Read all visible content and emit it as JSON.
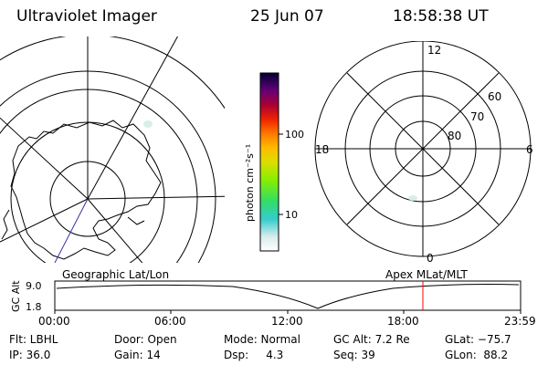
{
  "header": {
    "instrument": "Ultraviolet Imager",
    "date": "25 Jun 07",
    "time": "18:58:38 UT"
  },
  "colorbar": {
    "unit_label": "photon cm⁻²s⁻¹",
    "ticks": [
      "100",
      "10"
    ]
  },
  "polar_grid": {
    "mlt_labels": {
      "top": "12",
      "left": "18",
      "right": "6",
      "bottom": "0"
    },
    "lat_labels": [
      "60",
      "70",
      "80"
    ]
  },
  "orbit": {
    "left_label": "Geographic Lat/Lon",
    "right_label": "Apex MLat/MLT",
    "y_axis_label": "GC Alt",
    "y_ticks": [
      "9.0",
      "1.8"
    ],
    "x_ticks": [
      "00:00",
      "06:00",
      "12:00",
      "18:00",
      "23:59"
    ],
    "current_marker_color": "#ff0000"
  },
  "info": {
    "filter": "Flt: LBHL",
    "ip": "IP: 36.0",
    "door": "Door: Open",
    "gain": "Gain: 14",
    "mode": "Mode: Normal",
    "dsp": "Dsp:     4.3",
    "gc_alt": "GC Alt: 7.2 Re",
    "seq": "Seq: 39",
    "glat": "GLat: −75.7",
    "glon": "GLon:  88.2"
  }
}
